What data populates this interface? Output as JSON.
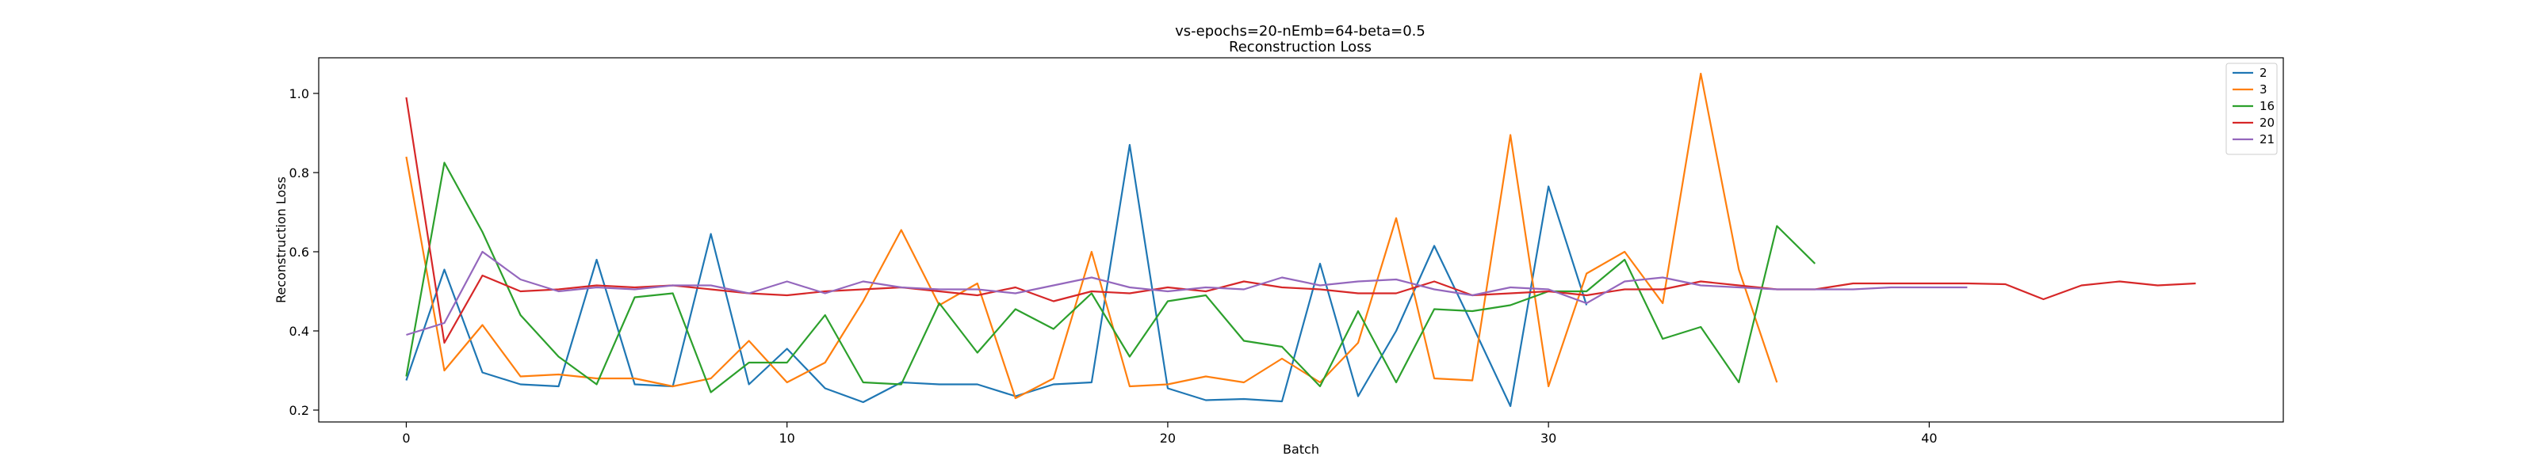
{
  "chart_data": {
    "type": "line",
    "title": "vs-epochs=20-nEmb=64-beta=0.5",
    "subtitle": "Reconstruction Loss",
    "xlabel": "Batch",
    "ylabel": "Reconstruction Loss",
    "xlim": [
      -2.3,
      49.3
    ],
    "ylim": [
      0.17,
      1.09
    ],
    "xticks": [
      0,
      10,
      20,
      30,
      40
    ],
    "yticks": [
      0.2,
      0.4,
      0.6,
      0.8,
      1.0
    ],
    "xtick_labels": [
      "0",
      "10",
      "20",
      "30",
      "40"
    ],
    "ytick_labels": [
      "0.2",
      "0.4",
      "0.6",
      "0.8",
      "1.0"
    ],
    "grid": false,
    "legend_position": "top-right",
    "series": [
      {
        "name": "2",
        "color": "#1f77b4",
        "values": [
          0.275,
          0.555,
          0.295,
          0.265,
          0.26,
          0.58,
          0.265,
          0.26,
          0.645,
          0.265,
          0.355,
          0.255,
          0.22,
          0.27,
          0.265,
          0.265,
          0.235,
          0.265,
          0.27,
          0.87,
          0.255,
          0.225,
          0.228,
          0.222,
          0.57,
          0.235,
          0.4,
          0.615,
          0.415,
          0.21,
          0.765,
          0.465
        ]
      },
      {
        "name": "3",
        "color": "#ff7f0e",
        "values": [
          0.84,
          0.3,
          0.415,
          0.285,
          0.29,
          0.28,
          0.28,
          0.26,
          0.28,
          0.375,
          0.27,
          0.32,
          0.475,
          0.655,
          0.465,
          0.52,
          0.23,
          0.28,
          0.6,
          0.26,
          0.265,
          0.285,
          0.27,
          0.33,
          0.27,
          0.37,
          0.685,
          0.28,
          0.275,
          0.895,
          0.26,
          0.545,
          0.6,
          0.47,
          1.05,
          0.555,
          0.27
        ]
      },
      {
        "name": "16",
        "color": "#2ca02c",
        "values": [
          0.285,
          0.825,
          0.65,
          0.44,
          0.335,
          0.265,
          0.485,
          0.495,
          0.245,
          0.32,
          0.32,
          0.44,
          0.27,
          0.265,
          0.47,
          0.345,
          0.455,
          0.405,
          0.495,
          0.335,
          0.475,
          0.49,
          0.375,
          0.36,
          0.26,
          0.45,
          0.27,
          0.455,
          0.45,
          0.465,
          0.5,
          0.5,
          0.58,
          0.38,
          0.41,
          0.27,
          0.665,
          0.57
        ]
      },
      {
        "name": "20",
        "color": "#d62728",
        "values": [
          0.99,
          0.37,
          0.54,
          0.5,
          0.505,
          0.515,
          0.51,
          0.515,
          0.505,
          0.495,
          0.49,
          0.5,
          0.505,
          0.51,
          0.5,
          0.49,
          0.51,
          0.475,
          0.5,
          0.495,
          0.51,
          0.5,
          0.525,
          0.51,
          0.505,
          0.495,
          0.495,
          0.525,
          0.49,
          0.495,
          0.5,
          0.49,
          0.505,
          0.505,
          0.525,
          0.515,
          0.505,
          0.505,
          0.52,
          0.52,
          0.52,
          0.52,
          0.518,
          0.48,
          0.515,
          0.525,
          0.515,
          0.52
        ]
      },
      {
        "name": "21",
        "color": "#9467bd",
        "values": [
          0.39,
          0.42,
          0.6,
          0.53,
          0.5,
          0.51,
          0.505,
          0.515,
          0.515,
          0.495,
          0.525,
          0.495,
          0.525,
          0.51,
          0.505,
          0.505,
          0.495,
          0.515,
          0.535,
          0.51,
          0.5,
          0.51,
          0.505,
          0.535,
          0.515,
          0.525,
          0.53,
          0.505,
          0.49,
          0.51,
          0.505,
          0.47,
          0.525,
          0.535,
          0.515,
          0.51,
          0.505,
          0.505,
          0.505,
          0.51,
          0.51,
          0.51
        ]
      }
    ]
  }
}
